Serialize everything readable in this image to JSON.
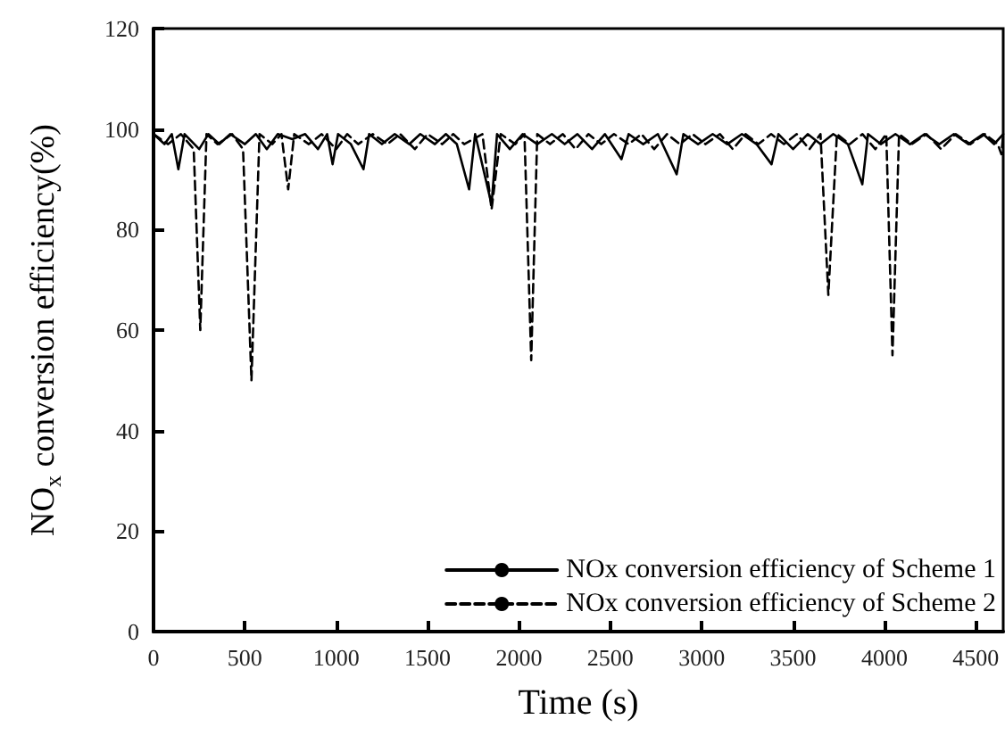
{
  "chart_data": {
    "type": "line",
    "xlabel": "Time (s)",
    "ylabel": "NO$_{x}$ conversion efficiency(%)",
    "xlim": [
      0,
      4650
    ],
    "ylim": [
      0,
      120
    ],
    "xticks": [
      0,
      500,
      1000,
      1500,
      2000,
      2500,
      3000,
      3500,
      4000,
      4500
    ],
    "yticks": [
      0,
      20,
      40,
      60,
      80,
      100,
      120
    ],
    "grid": false,
    "legend": "bottom right",
    "marker": "none",
    "series": [
      {
        "name": "NOx conversion efficiency of Scheme 1",
        "color": "#000000",
        "line_style": "solid",
        "x": [
          0,
          60,
          100,
          136,
          170,
          250,
          300,
          360,
          420,
          500,
          560,
          620,
          680,
          760,
          830,
          900,
          950,
          980,
          1010,
          1080,
          1149,
          1180,
          1250,
          1320,
          1400,
          1460,
          1540,
          1600,
          1660,
          1727,
          1760,
          1850,
          1880,
          1950,
          2020,
          2100,
          2180,
          2250,
          2320,
          2400,
          2470,
          2561,
          2600,
          2680,
          2760,
          2863,
          2900,
          2980,
          3060,
          3140,
          3220,
          3300,
          3382,
          3420,
          3500,
          3580,
          3650,
          3720,
          3800,
          3879,
          3910,
          3980,
          4060,
          4140,
          4220,
          4300,
          4380,
          4460,
          4540,
          4600,
          4650
        ],
        "values": [
          99,
          97,
          99,
          92,
          99,
          96,
          99,
          97,
          99,
          97,
          99,
          96,
          99,
          98,
          99,
          96,
          99,
          93,
          99,
          97,
          92,
          99,
          97,
          99,
          97,
          99,
          97,
          99,
          97,
          88,
          99,
          85,
          99,
          96,
          99,
          97,
          99,
          97,
          99,
          96,
          99,
          94,
          99,
          97,
          99,
          91,
          99,
          97,
          99,
          97,
          99,
          97,
          93,
          99,
          96,
          99,
          97,
          99,
          97,
          89,
          99,
          97,
          99,
          97,
          99,
          97,
          99,
          97,
          99,
          97,
          99
        ]
      },
      {
        "name": "NOx conversion efficiency of Scheme 2",
        "color": "#000000",
        "line_style": "dashed",
        "x": [
          0,
          80,
          150,
          220,
          256,
          290,
          350,
          430,
          490,
          536,
          580,
          650,
          700,
          737,
          770,
          850,
          920,
          1000,
          1060,
          1120,
          1200,
          1280,
          1350,
          1430,
          1500,
          1580,
          1640,
          1700,
          1800,
          1850,
          1900,
          1980,
          2030,
          2067,
          2100,
          2170,
          2240,
          2310,
          2380,
          2450,
          2520,
          2600,
          2670,
          2740,
          2810,
          2880,
          2950,
          3020,
          3100,
          3170,
          3240,
          3310,
          3380,
          3450,
          3520,
          3590,
          3650,
          3693,
          3740,
          3810,
          3880,
          3950,
          4010,
          4044,
          4080,
          4150,
          4230,
          4310,
          4390,
          4470,
          4550,
          4620,
          4640,
          4650
        ],
        "values": [
          99,
          97,
          99,
          96,
          60,
          99,
          97,
          99,
          96,
          50,
          99,
          97,
          99,
          88,
          99,
          97,
          99,
          96,
          99,
          97,
          99,
          97,
          99,
          96,
          99,
          97,
          99,
          97,
          99,
          84,
          99,
          97,
          99,
          54,
          99,
          97,
          99,
          96,
          99,
          97,
          99,
          97,
          99,
          96,
          99,
          97,
          99,
          97,
          99,
          96,
          99,
          97,
          99,
          97,
          99,
          96,
          99,
          67,
          99,
          97,
          99,
          96,
          99,
          55,
          99,
          97,
          99,
          96,
          99,
          97,
          99,
          97,
          95,
          99
        ]
      }
    ]
  }
}
